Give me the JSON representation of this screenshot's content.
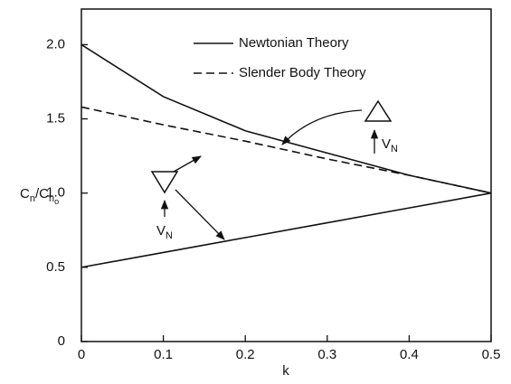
{
  "chart_data": {
    "type": "line",
    "x_label": "k",
    "y_label": {
      "base": "C",
      "sub": "n",
      "mid": "/C",
      "sub2": "n",
      "subsub": "o"
    },
    "x": [
      0,
      0.1,
      0.2,
      0.3,
      0.4,
      0.5
    ],
    "series": [
      {
        "name": "Newtonian Theory",
        "color": "#111111",
        "style": "solid",
        "values": [
          2.0,
          1.65,
          1.42,
          1.27,
          1.12,
          1.0
        ]
      },
      {
        "name": "Slender Body Theory",
        "color": "#111111",
        "style": "dashed",
        "values": [
          1.58,
          1.46,
          1.35,
          1.23,
          1.12,
          1.0
        ]
      },
      {
        "color": "#111111",
        "style": "solid",
        "values": [
          0.5,
          0.6,
          0.7,
          0.8,
          0.9,
          1.0
        ]
      }
    ],
    "annotations": [
      {
        "text": "V",
        "sub": "N"
      },
      {
        "text": "V",
        "sub": "N"
      }
    ],
    "xlim": [
      0,
      0.5
    ],
    "ylim": [
      0,
      2.24
    ],
    "xticks": [
      0,
      0.1,
      0.2,
      0.3,
      0.4,
      0.5
    ],
    "yticks": [
      0,
      0.5,
      {
        "value": 1.0,
        "label": "1.0"
      },
      1.5,
      {
        "value": 2.0,
        "label": "2.0"
      }
    ]
  }
}
